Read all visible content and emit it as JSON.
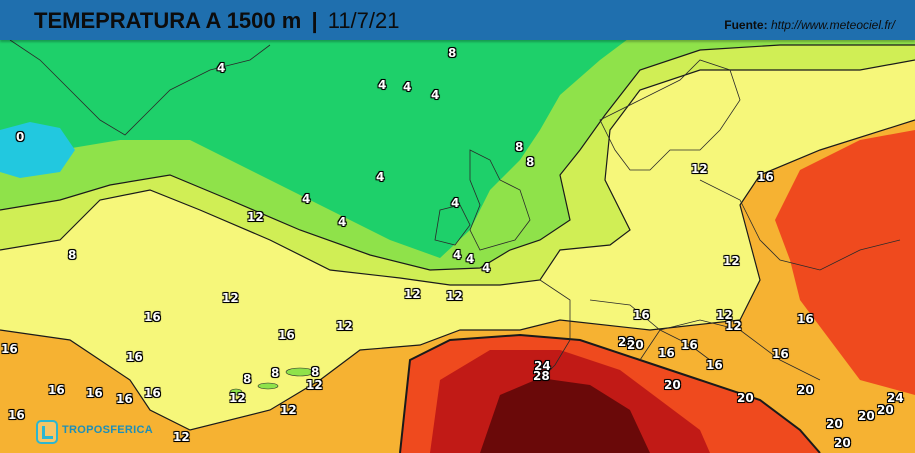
{
  "header": {
    "title_main": "TEMEPRATURA A 1500 m",
    "separator": "|",
    "date": "11/7/21",
    "source_label": "Fuente:",
    "source_url": "http://www.meteociel.fr/"
  },
  "logo": {
    "name": "TROPOSFERICA",
    "icon": "troposferica-logo-icon"
  },
  "colors": {
    "header_bar": "#1f6fae",
    "t_0": "#22c8df",
    "t_4": "#1ed06a",
    "t_8": "#8fe24a",
    "t_12": "#f6f77a",
    "t_16": "#f6b232",
    "t_20": "#ef4a1e",
    "t_24": "#c11a16",
    "t_28": "#6a0909"
  },
  "isotherm_labels": [
    {
      "text": "0"
    },
    {
      "text": "4"
    },
    {
      "text": "4"
    },
    {
      "text": "4"
    },
    {
      "text": "4"
    },
    {
      "text": "4"
    },
    {
      "text": "4"
    },
    {
      "text": "4"
    },
    {
      "text": "4"
    },
    {
      "text": "4"
    },
    {
      "text": "4"
    },
    {
      "text": "4"
    },
    {
      "text": "8"
    },
    {
      "text": "8"
    },
    {
      "text": "8"
    },
    {
      "text": "8"
    },
    {
      "text": "8"
    },
    {
      "text": "8"
    },
    {
      "text": "8"
    },
    {
      "text": "12"
    },
    {
      "text": "12"
    },
    {
      "text": "12"
    },
    {
      "text": "12"
    },
    {
      "text": "12"
    },
    {
      "text": "12"
    },
    {
      "text": "12"
    },
    {
      "text": "12"
    },
    {
      "text": "12"
    },
    {
      "text": "12"
    },
    {
      "text": "12"
    },
    {
      "text": "12"
    },
    {
      "text": "12"
    },
    {
      "text": "16"
    },
    {
      "text": "16"
    },
    {
      "text": "16"
    },
    {
      "text": "16"
    },
    {
      "text": "16"
    },
    {
      "text": "16"
    },
    {
      "text": "16"
    },
    {
      "text": "16"
    },
    {
      "text": "16"
    },
    {
      "text": "16"
    },
    {
      "text": "16"
    },
    {
      "text": "16"
    },
    {
      "text": "16"
    },
    {
      "text": "16"
    },
    {
      "text": "16"
    },
    {
      "text": "16"
    },
    {
      "text": "20"
    },
    {
      "text": "20"
    },
    {
      "text": "20"
    },
    {
      "text": "20"
    },
    {
      "text": "20"
    },
    {
      "text": "20"
    },
    {
      "text": "20"
    },
    {
      "text": "20"
    },
    {
      "text": "20"
    },
    {
      "text": "24"
    },
    {
      "text": "24"
    },
    {
      "text": "28"
    }
  ]
}
